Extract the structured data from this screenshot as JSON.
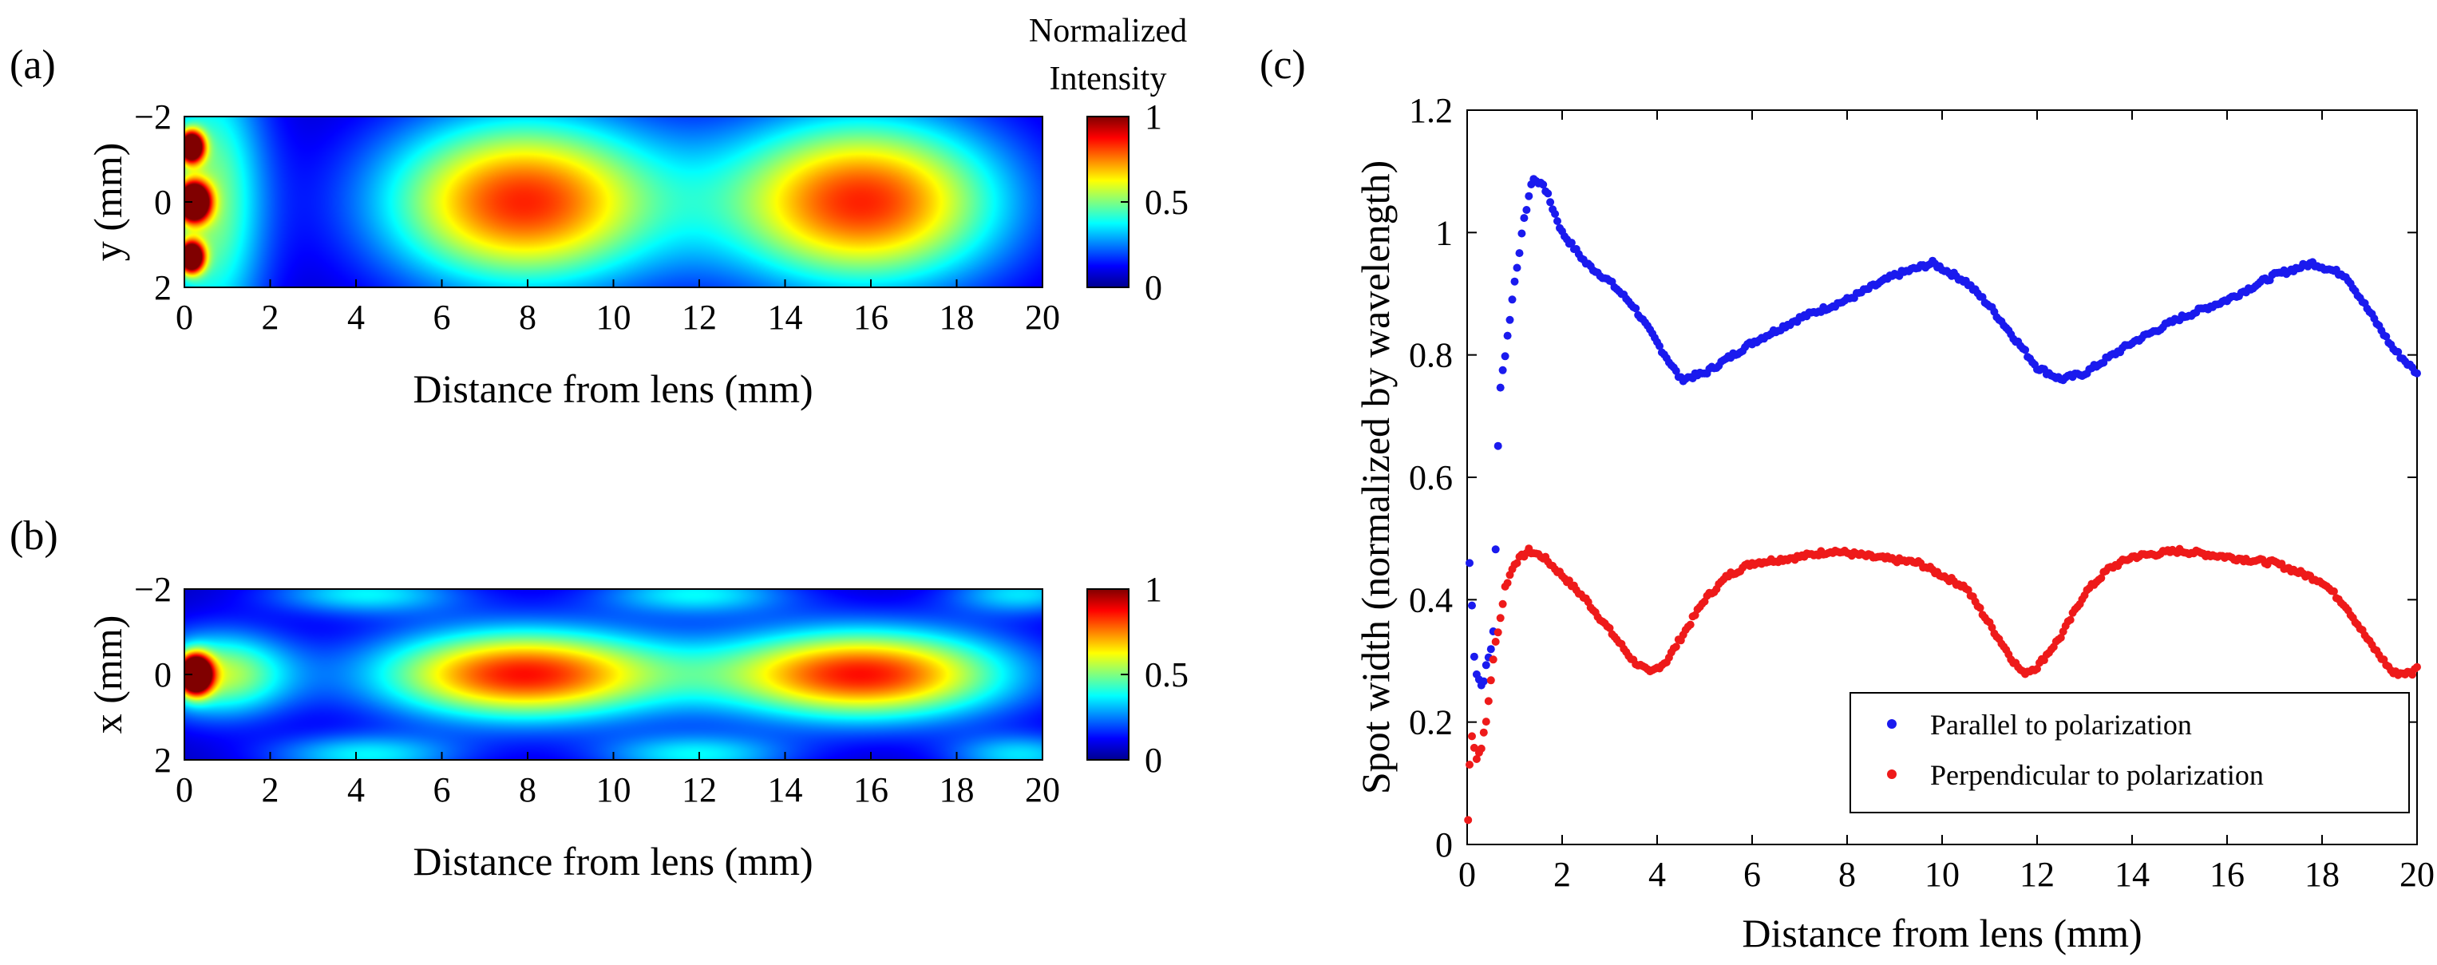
{
  "figure": {
    "panel_labels": [
      "(a)",
      "(b)",
      "(c)"
    ],
    "colorbar_title": [
      "Normalized",
      "Intensity"
    ]
  },
  "colors": {
    "parallel": "#1a1aee",
    "perpendicular": "#ee1a1a"
  },
  "chart_data": [
    {
      "id": "a",
      "type": "heatmap",
      "title": "",
      "xlabel": "Distance from lens (mm)",
      "ylabel": "y (mm)",
      "xlim": [
        0,
        20
      ],
      "ylim": [
        -2,
        2
      ],
      "x_ticks": [
        0,
        2,
        4,
        6,
        8,
        10,
        12,
        14,
        16,
        18,
        20
      ],
      "x_tick_labels": [
        "0",
        "2",
        "4",
        "6",
        "8",
        "10",
        "12",
        "14",
        "16",
        "18",
        "20"
      ],
      "y_ticks": [
        -2,
        0,
        2
      ],
      "y_tick_labels": [
        "−2",
        "0",
        "2"
      ],
      "colorbar": {
        "range": [
          0,
          1
        ],
        "ticks": [
          0,
          0.5,
          1
        ],
        "tick_labels": [
          "0",
          "0.5",
          "1"
        ]
      },
      "peaks": [
        {
          "x": 0.2,
          "y": 0,
          "sx": 0.25,
          "sy": 0.3,
          "amp": 1.4
        },
        {
          "x": 0.15,
          "y": -1.3,
          "sx": 0.2,
          "sy": 0.25,
          "amp": 1.2
        },
        {
          "x": 0.15,
          "y": 1.3,
          "sx": 0.2,
          "sy": 0.25,
          "amp": 1.2
        },
        {
          "x": 0.6,
          "y": 0,
          "sx": 0.9,
          "sy": 2.4,
          "amp": 0.45
        },
        {
          "x": 7.9,
          "y": 0,
          "sx": 2.3,
          "sy": 1.4,
          "amp": 0.78
        },
        {
          "x": 15.8,
          "y": 0,
          "sx": 2.3,
          "sy": 1.4,
          "amp": 0.78
        }
      ]
    },
    {
      "id": "b",
      "type": "heatmap",
      "title": "",
      "xlabel": "Distance from lens (mm)",
      "ylabel": "x (mm)",
      "xlim": [
        0,
        20
      ],
      "ylim": [
        -2,
        2
      ],
      "x_ticks": [
        0,
        2,
        4,
        6,
        8,
        10,
        12,
        14,
        16,
        18,
        20
      ],
      "x_tick_labels": [
        "0",
        "2",
        "4",
        "6",
        "8",
        "10",
        "12",
        "14",
        "16",
        "18",
        "20"
      ],
      "y_ticks": [
        -2,
        0,
        2
      ],
      "y_tick_labels": [
        "−2",
        "0",
        "2"
      ],
      "colorbar": {
        "range": [
          0,
          1
        ],
        "ticks": [
          0,
          0.5,
          1
        ],
        "tick_labels": [
          "0",
          "0.5",
          "1"
        ]
      },
      "peaks": [
        {
          "x": 0.25,
          "y": 0,
          "sx": 0.25,
          "sy": 0.3,
          "amp": 1.4
        },
        {
          "x": 0.8,
          "y": 0,
          "sx": 1.2,
          "sy": 0.7,
          "amp": 0.5
        },
        {
          "x": 7.9,
          "y": 0,
          "sx": 2.4,
          "sy": 0.75,
          "amp": 0.8
        },
        {
          "x": 15.8,
          "y": 0,
          "sx": 2.4,
          "sy": 0.75,
          "amp": 0.8
        },
        {
          "x": 4.2,
          "y": -1.9,
          "sx": 1.6,
          "sy": 0.35,
          "amp": 0.3
        },
        {
          "x": 4.2,
          "y": 1.9,
          "sx": 1.6,
          "sy": 0.35,
          "amp": 0.3
        },
        {
          "x": 11.9,
          "y": -1.9,
          "sx": 1.6,
          "sy": 0.35,
          "amp": 0.3
        },
        {
          "x": 11.9,
          "y": 1.9,
          "sx": 1.6,
          "sy": 0.35,
          "amp": 0.3
        },
        {
          "x": 19.5,
          "y": -1.9,
          "sx": 1.2,
          "sy": 0.35,
          "amp": 0.28
        },
        {
          "x": 19.5,
          "y": 1.9,
          "sx": 1.2,
          "sy": 0.35,
          "amp": 0.28
        }
      ]
    },
    {
      "id": "c",
      "type": "scatter",
      "title": "",
      "xlabel": "Distance from lens (mm)",
      "ylabel": "Spot width (normalized by wavelength)",
      "xlim": [
        0,
        20
      ],
      "ylim": [
        0,
        1.2
      ],
      "x_ticks": [
        0,
        2,
        4,
        6,
        8,
        10,
        12,
        14,
        16,
        18,
        20
      ],
      "x_tick_labels": [
        "0",
        "2",
        "4",
        "6",
        "8",
        "10",
        "12",
        "14",
        "16",
        "18",
        "20"
      ],
      "y_ticks": [
        0,
        0.2,
        0.4,
        0.6,
        0.8,
        1,
        1.2
      ],
      "y_tick_labels": [
        "0",
        "0.2",
        "0.4",
        "0.6",
        "0.8",
        "1",
        "1.2"
      ],
      "legend": {
        "position": "bottom-right"
      },
      "series": [
        {
          "name": "Parallel to polarization",
          "color_key": "parallel",
          "points": [
            [
              0.05,
              0.46
            ],
            [
              0.1,
              0.39
            ],
            [
              0.15,
              0.31
            ],
            [
              0.2,
              0.28
            ],
            [
              0.25,
              0.27
            ],
            [
              0.3,
              0.26
            ],
            [
              0.35,
              0.27
            ],
            [
              0.4,
              0.29
            ],
            [
              0.5,
              0.32
            ],
            [
              0.55,
              0.35
            ],
            [
              0.6,
              0.48
            ],
            [
              0.65,
              0.65
            ],
            [
              0.7,
              0.75
            ],
            [
              0.8,
              0.8
            ],
            [
              0.9,
              0.86
            ],
            [
              1.0,
              0.92
            ],
            [
              1.1,
              0.97
            ],
            [
              1.2,
              1.02
            ],
            [
              1.3,
              1.06
            ],
            [
              1.4,
              1.09
            ],
            [
              1.5,
              1.08
            ],
            [
              1.6,
              1.08
            ],
            [
              1.7,
              1.06
            ],
            [
              1.8,
              1.04
            ],
            [
              2.0,
              1.0
            ],
            [
              2.5,
              0.95
            ],
            [
              3.0,
              0.92
            ],
            [
              3.5,
              0.88
            ],
            [
              4.0,
              0.82
            ],
            [
              4.5,
              0.76
            ],
            [
              5.0,
              0.77
            ],
            [
              6.0,
              0.82
            ],
            [
              7.0,
              0.86
            ],
            [
              8.0,
              0.89
            ],
            [
              9.0,
              0.93
            ],
            [
              9.8,
              0.95
            ],
            [
              10.5,
              0.92
            ],
            [
              11.0,
              0.88
            ],
            [
              11.5,
              0.83
            ],
            [
              12.0,
              0.78
            ],
            [
              12.5,
              0.76
            ],
            [
              13.0,
              0.77
            ],
            [
              14.0,
              0.82
            ],
            [
              15.0,
              0.86
            ],
            [
              16.0,
              0.89
            ],
            [
              17.0,
              0.93
            ],
            [
              17.8,
              0.95
            ],
            [
              18.5,
              0.93
            ],
            [
              19.0,
              0.87
            ],
            [
              19.5,
              0.81
            ],
            [
              20.0,
              0.77
            ]
          ]
        },
        {
          "name": "Perpendicular to polarization",
          "color_key": "perpendicular",
          "points": [
            [
              0.02,
              0.04
            ],
            [
              0.05,
              0.13
            ],
            [
              0.1,
              0.18
            ],
            [
              0.2,
              0.14
            ],
            [
              0.3,
              0.16
            ],
            [
              0.4,
              0.2
            ],
            [
              0.5,
              0.27
            ],
            [
              0.6,
              0.33
            ],
            [
              0.7,
              0.37
            ],
            [
              0.8,
              0.42
            ],
            [
              1.0,
              0.46
            ],
            [
              1.3,
              0.48
            ],
            [
              1.6,
              0.47
            ],
            [
              2.0,
              0.44
            ],
            [
              2.5,
              0.4
            ],
            [
              3.0,
              0.35
            ],
            [
              3.5,
              0.3
            ],
            [
              3.85,
              0.28
            ],
            [
              4.2,
              0.3
            ],
            [
              4.6,
              0.35
            ],
            [
              5.0,
              0.4
            ],
            [
              5.5,
              0.44
            ],
            [
              6.0,
              0.46
            ],
            [
              7.0,
              0.47
            ],
            [
              7.7,
              0.48
            ],
            [
              8.5,
              0.47
            ],
            [
              9.5,
              0.46
            ],
            [
              10.5,
              0.42
            ],
            [
              11.0,
              0.36
            ],
            [
              11.5,
              0.3
            ],
            [
              11.7,
              0.28
            ],
            [
              12.0,
              0.29
            ],
            [
              12.5,
              0.34
            ],
            [
              13.0,
              0.41
            ],
            [
              13.5,
              0.45
            ],
            [
              14.0,
              0.47
            ],
            [
              15.0,
              0.48
            ],
            [
              16.0,
              0.47
            ],
            [
              17.0,
              0.46
            ],
            [
              18.0,
              0.43
            ],
            [
              18.5,
              0.39
            ],
            [
              19.0,
              0.33
            ],
            [
              19.5,
              0.28
            ],
            [
              19.9,
              0.28
            ],
            [
              20.0,
              0.29
            ]
          ]
        }
      ]
    }
  ]
}
